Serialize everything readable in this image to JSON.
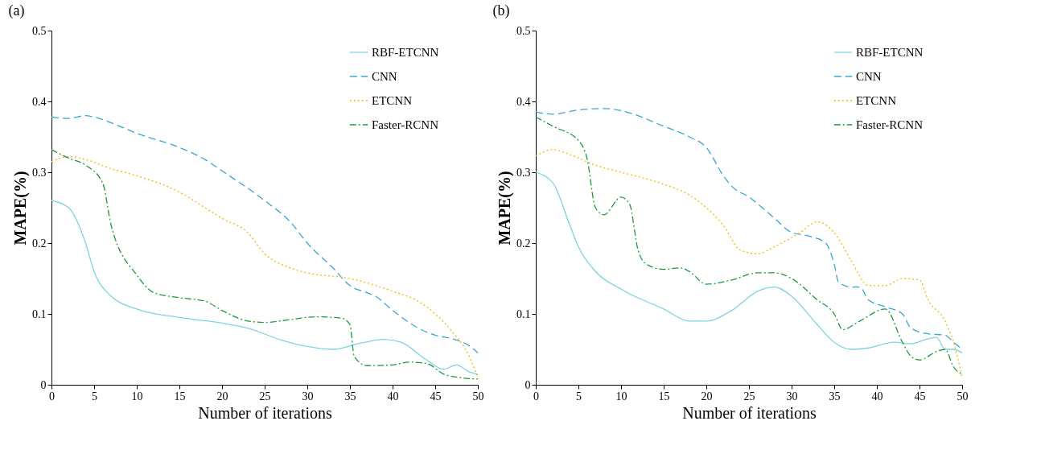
{
  "chart_data": [
    {
      "type": "line",
      "title": "(a)",
      "xlabel": "Number of iterations",
      "ylabel": "MAPE(%)",
      "xlim": [
        0,
        50
      ],
      "ylim": [
        0,
        0.5
      ],
      "xticks": [
        0,
        5,
        10,
        15,
        20,
        25,
        30,
        35,
        40,
        45,
        50
      ],
      "yticks": [
        0,
        0.1,
        0.2,
        0.3,
        0.4,
        0.5
      ],
      "grid": false,
      "legend": "top right",
      "marker": "none",
      "series": [
        {
          "name": "RBF-ETCNN",
          "color": "#7fd3e0",
          "line_style": "solid",
          "x": [
            0,
            2,
            4,
            5,
            7,
            10,
            15,
            20,
            23,
            27,
            30,
            33,
            36,
            39,
            41,
            44,
            46,
            47.5,
            49,
            50
          ],
          "values": [
            0.26,
            0.25,
            0.2,
            0.16,
            0.125,
            0.107,
            0.095,
            0.087,
            0.08,
            0.063,
            0.054,
            0.05,
            0.058,
            0.064,
            0.06,
            0.035,
            0.022,
            0.028,
            0.018,
            0.015
          ]
        },
        {
          "name": "CNN",
          "color": "#3ba6d0",
          "line_style": "dashed",
          "x": [
            0,
            2,
            4,
            5,
            8,
            10,
            15,
            18,
            20,
            25,
            28,
            30,
            33,
            35,
            37,
            38,
            40,
            43,
            45,
            47,
            49,
            50
          ],
          "values": [
            0.378,
            0.376,
            0.38,
            0.378,
            0.365,
            0.355,
            0.335,
            0.318,
            0.302,
            0.26,
            0.23,
            0.2,
            0.165,
            0.14,
            0.13,
            0.125,
            0.105,
            0.08,
            0.07,
            0.065,
            0.055,
            0.045
          ]
        },
        {
          "name": "ETCNN",
          "color": "#f5b800",
          "line_style": "dotted",
          "x": [
            0,
            2,
            4,
            7,
            10,
            15,
            18,
            20,
            23,
            25,
            28,
            30,
            35,
            40,
            43,
            45,
            47,
            49,
            50
          ],
          "values": [
            0.315,
            0.322,
            0.318,
            0.305,
            0.295,
            0.272,
            0.25,
            0.235,
            0.215,
            0.185,
            0.165,
            0.158,
            0.15,
            0.132,
            0.118,
            0.1,
            0.075,
            0.04,
            0.01
          ]
        },
        {
          "name": "Faster-RCNN",
          "color": "#1a9a3a",
          "line_style": "dashdot",
          "x": [
            0,
            2,
            4,
            6,
            7,
            10,
            12,
            15,
            18,
            20,
            23,
            25,
            28,
            31,
            34,
            35,
            35.5,
            37,
            40,
            42,
            44,
            46,
            48,
            50
          ],
          "values": [
            0.332,
            0.32,
            0.31,
            0.285,
            0.225,
            0.155,
            0.13,
            0.123,
            0.118,
            0.105,
            0.09,
            0.088,
            0.092,
            0.096,
            0.094,
            0.085,
            0.04,
            0.027,
            0.028,
            0.032,
            0.03,
            0.015,
            0.01,
            0.008
          ]
        }
      ]
    },
    {
      "type": "line",
      "title": "(b)",
      "xlabel": "Number of iterations",
      "ylabel": "MAPE(%)",
      "xlim": [
        0,
        50
      ],
      "ylim": [
        0,
        0.5
      ],
      "xticks": [
        0,
        5,
        10,
        15,
        20,
        25,
        30,
        35,
        40,
        45,
        50
      ],
      "yticks": [
        0,
        0.1,
        0.2,
        0.3,
        0.4,
        0.5
      ],
      "grid": false,
      "legend": "top right",
      "marker": "none",
      "series": [
        {
          "name": "RBF-ETCNN",
          "color": "#7fd3e0",
          "line_style": "solid",
          "x": [
            0,
            2,
            4,
            5,
            7,
            10,
            15,
            18,
            20,
            23,
            26,
            28,
            30,
            33,
            35,
            37,
            39,
            42,
            44,
            46,
            47,
            48,
            49,
            50
          ],
          "values": [
            0.3,
            0.285,
            0.225,
            0.195,
            0.16,
            0.135,
            0.107,
            0.09,
            0.09,
            0.105,
            0.132,
            0.138,
            0.125,
            0.085,
            0.06,
            0.05,
            0.052,
            0.06,
            0.058,
            0.065,
            0.067,
            0.05,
            0.05,
            0.045
          ]
        },
        {
          "name": "CNN",
          "color": "#3ba6d0",
          "line_style": "dashed",
          "x": [
            0,
            2,
            5,
            8,
            10,
            15,
            18,
            20,
            22,
            23,
            25,
            28,
            30,
            32,
            34,
            35,
            35.5,
            37,
            38,
            39,
            41,
            43,
            44,
            46,
            48,
            49,
            50
          ],
          "values": [
            0.385,
            0.382,
            0.388,
            0.39,
            0.387,
            0.365,
            0.35,
            0.335,
            0.295,
            0.28,
            0.265,
            0.235,
            0.215,
            0.21,
            0.2,
            0.17,
            0.145,
            0.138,
            0.138,
            0.12,
            0.11,
            0.1,
            0.08,
            0.072,
            0.07,
            0.06,
            0.05
          ]
        },
        {
          "name": "ETCNN",
          "color": "#f5b800",
          "line_style": "dotted",
          "x": [
            0,
            2,
            4,
            7,
            10,
            15,
            18,
            20,
            22,
            24,
            26,
            28,
            31,
            33,
            35,
            37,
            39,
            41,
            43,
            45,
            46,
            48,
            49,
            50
          ],
          "values": [
            0.323,
            0.332,
            0.325,
            0.31,
            0.3,
            0.283,
            0.268,
            0.25,
            0.225,
            0.19,
            0.185,
            0.195,
            0.215,
            0.23,
            0.215,
            0.175,
            0.14,
            0.14,
            0.15,
            0.148,
            0.12,
            0.09,
            0.06,
            0.01
          ]
        },
        {
          "name": "Faster-RCNN",
          "color": "#1a9a3a",
          "line_style": "dashdot",
          "x": [
            0,
            2,
            5,
            6,
            7,
            8,
            10,
            11,
            12,
            13,
            15,
            17,
            18,
            20,
            23,
            26,
            28,
            30,
            33,
            35,
            36,
            38,
            41,
            43,
            44,
            45,
            47,
            48,
            49,
            50
          ],
          "values": [
            0.378,
            0.365,
            0.345,
            0.32,
            0.25,
            0.24,
            0.265,
            0.255,
            0.19,
            0.17,
            0.163,
            0.165,
            0.16,
            0.142,
            0.148,
            0.158,
            0.158,
            0.15,
            0.12,
            0.1,
            0.078,
            0.09,
            0.107,
            0.06,
            0.04,
            0.035,
            0.047,
            0.05,
            0.025,
            0.015
          ]
        }
      ]
    }
  ]
}
